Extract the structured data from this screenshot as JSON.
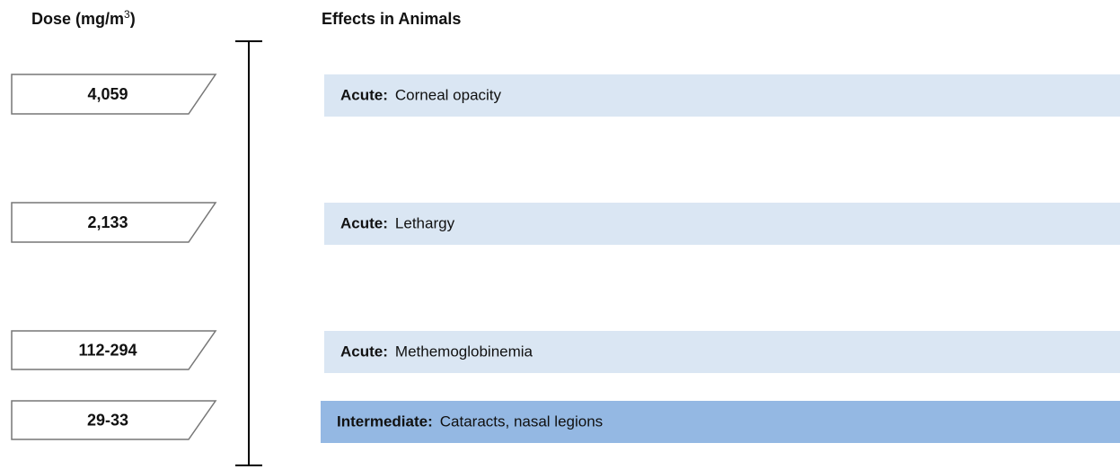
{
  "header": {
    "dose": {
      "text": "Dose (mg/m",
      "sup": "3",
      "suffix": ")"
    },
    "effects": "Effects in Animals"
  },
  "rows": [
    {
      "dose": "4,059",
      "category": "Acute:",
      "effect": "Corneal opacity"
    },
    {
      "dose": "2,133",
      "category": "Acute:",
      "effect": "Lethargy"
    },
    {
      "dose": "112-294",
      "category": "Acute:",
      "effect": "Methemoglobinemia"
    },
    {
      "dose": "29-33",
      "category": "Intermediate:",
      "effect": "Cataracts, nasal legions"
    }
  ]
}
